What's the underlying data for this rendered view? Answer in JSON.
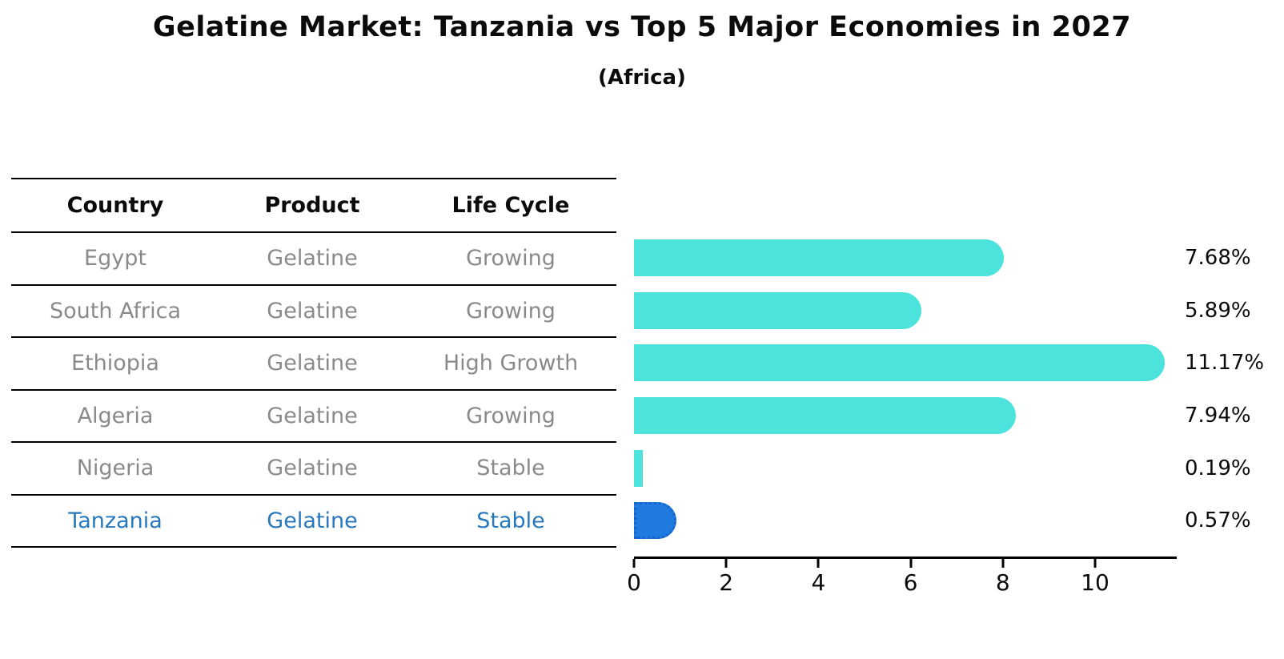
{
  "title": "Gelatine Market: Tanzania vs Top 5 Major Economies in 2027",
  "subtitle": "(Africa)",
  "table": {
    "headers": [
      "Country",
      "Product",
      "Life Cycle"
    ],
    "rows": [
      {
        "country": "Egypt",
        "product": "Gelatine",
        "life_cycle": "Growing",
        "highlight": false
      },
      {
        "country": "South Africa",
        "product": "Gelatine",
        "life_cycle": "Growing",
        "highlight": false
      },
      {
        "country": "Ethiopia",
        "product": "Gelatine",
        "life_cycle": "High Growth",
        "highlight": false
      },
      {
        "country": "Algeria",
        "product": "Gelatine",
        "life_cycle": "Growing",
        "highlight": false
      },
      {
        "country": "Nigeria",
        "product": "Gelatine",
        "life_cycle": "Stable",
        "highlight": false
      },
      {
        "country": "Tanzania",
        "product": "Gelatine",
        "life_cycle": "Stable",
        "highlight": true
      }
    ]
  },
  "chart_data": {
    "type": "bar",
    "orientation": "horizontal",
    "title": "Gelatine Market: Tanzania vs Top 5 Major Economies in 2027",
    "subtitle": "(Africa)",
    "categories": [
      "Egypt",
      "South Africa",
      "Ethiopia",
      "Algeria",
      "Nigeria",
      "Tanzania"
    ],
    "values": [
      7.68,
      5.89,
      11.17,
      7.94,
      0.19,
      0.57
    ],
    "value_labels": [
      "7.68%",
      "5.89%",
      "11.17%",
      "7.94%",
      "0.19%",
      "0.57%"
    ],
    "x_ticks": [
      0,
      2,
      4,
      6,
      8,
      10
    ],
    "xlim": [
      0,
      11.77
    ],
    "grid": false,
    "legend": "none",
    "highlight_index": 5,
    "colors": {
      "bar": "#4de3dd",
      "highlight_bar": "#1f7bdf",
      "highlight_bar_border": "#1565cb",
      "highlight_text": "#2878be",
      "row_text": "#8a8a8a",
      "header_text": "#0b0b0b",
      "axis": "#000000"
    }
  }
}
